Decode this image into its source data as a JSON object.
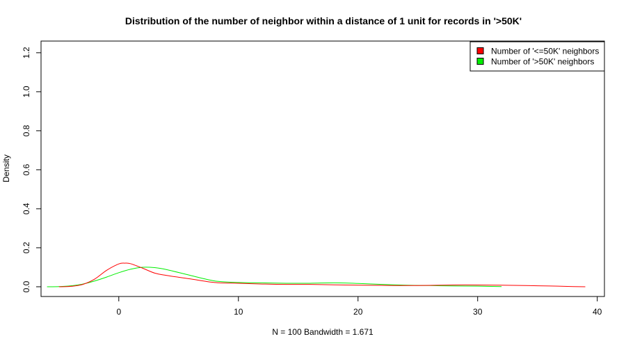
{
  "chart_data": {
    "type": "line",
    "title": "Distribution of the number of neighbor within a distance of 1 unit for records in '>50K'",
    "xlabel": "N = 100   Bandwidth = 1.671",
    "ylabel": "Density",
    "xlim": [
      -6.5,
      40.6
    ],
    "ylim": [
      -0.05,
      1.26
    ],
    "x_ticks": [
      0,
      10,
      20,
      30,
      40
    ],
    "x_tick_labels": [
      "0",
      "10",
      "20",
      "30",
      "40"
    ],
    "y_ticks": [
      0.0,
      0.2,
      0.4,
      0.6,
      0.8,
      1.0,
      1.2
    ],
    "y_tick_labels": [
      "0.0",
      "0.2",
      "0.4",
      "0.6",
      "0.8",
      "1.0",
      "1.2"
    ],
    "grid": false,
    "legend_position": "top-right",
    "series": [
      {
        "name": "Number of '<=50K' neighbors",
        "color": "#ff0000",
        "x": [
          -5,
          -4,
          -3,
          -2,
          -1,
          0,
          0.5,
          1,
          2,
          3,
          4,
          6,
          8,
          10,
          12,
          14,
          16,
          18,
          20,
          22,
          24,
          26,
          28,
          30,
          32,
          34,
          36,
          38,
          39
        ],
        "y": [
          0.0,
          0.002,
          0.012,
          0.04,
          0.085,
          0.117,
          0.121,
          0.118,
          0.095,
          0.07,
          0.058,
          0.04,
          0.022,
          0.018,
          0.014,
          0.012,
          0.012,
          0.01,
          0.008,
          0.007,
          0.006,
          0.007,
          0.009,
          0.009,
          0.008,
          0.006,
          0.004,
          0.001,
          0.0
        ]
      },
      {
        "name": "Number of '>50K' neighbors",
        "color": "#00ee00",
        "x": [
          -6,
          -5,
          -4,
          -3,
          -2,
          -1,
          0,
          1,
          2,
          3,
          4,
          6,
          8,
          10,
          12,
          14,
          16,
          18,
          20,
          22,
          24,
          26,
          28,
          30,
          32
        ],
        "y": [
          0.0,
          0.001,
          0.005,
          0.014,
          0.03,
          0.05,
          0.072,
          0.09,
          0.1,
          0.098,
          0.088,
          0.058,
          0.03,
          0.022,
          0.02,
          0.018,
          0.018,
          0.02,
          0.017,
          0.012,
          0.008,
          0.006,
          0.004,
          0.003,
          0.001
        ]
      }
    ]
  }
}
